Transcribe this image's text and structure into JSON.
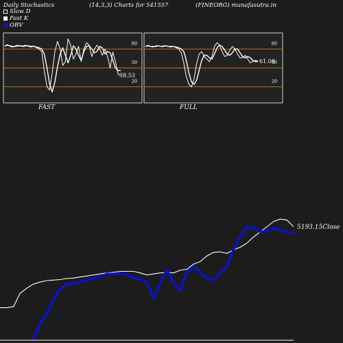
{
  "header": {
    "title": "Daily Stochastics",
    "params": "(14,3,3) Charts for 541557",
    "site": "(FINEORG) munafasutra.in"
  },
  "legend": [
    {
      "label": "Slow  D",
      "color": "#ffffff",
      "style": "outline"
    },
    {
      "label": "Fast K",
      "color": "#ffffff",
      "style": "filled"
    },
    {
      "label": "OBV",
      "color": "#0a12c8",
      "style": "filled"
    }
  ],
  "colors": {
    "background": "#1c1c1c",
    "panel": "#222222",
    "level_line": "#c07a12",
    "stoch_line": "#ffffff",
    "obv_line": "#0a12c8",
    "close_line": "#ffffff"
  },
  "chart_data": [
    {
      "type": "line",
      "title": "FAST",
      "ylim": [
        0,
        100
      ],
      "levels": [
        80,
        50,
        20
      ],
      "tick_labels": [
        "80",
        "50",
        "20"
      ],
      "last_value_label": "38.53",
      "x": [
        1,
        2,
        3,
        4,
        5,
        6,
        7,
        8,
        9,
        10,
        11,
        12,
        13,
        14,
        15,
        16,
        17,
        18,
        19,
        20,
        21,
        22,
        23,
        24,
        25,
        26,
        27,
        28,
        29,
        30,
        31,
        32,
        33,
        34,
        35,
        36,
        37,
        38,
        39,
        40,
        41,
        42,
        43,
        44,
        45
      ],
      "series": [
        {
          "name": "Slow  D",
          "values": [
            85,
            86,
            85,
            84,
            84,
            85,
            85,
            84,
            85,
            85,
            84,
            84,
            83,
            82,
            80,
            72,
            50,
            25,
            12,
            28,
            52,
            72,
            82,
            70,
            58,
            70,
            85,
            80,
            70,
            62,
            76,
            84,
            85,
            80,
            74,
            76,
            84,
            82,
            72,
            76,
            74,
            62,
            50,
            46,
            46
          ]
        },
        {
          "name": "Fast K",
          "values": [
            84,
            87,
            84,
            83,
            85,
            86,
            84,
            85,
            86,
            84,
            83,
            85,
            82,
            80,
            76,
            45,
            20,
            15,
            42,
            76,
            92,
            80,
            54,
            60,
            96,
            86,
            64,
            72,
            84,
            60,
            80,
            90,
            86,
            68,
            80,
            86,
            80,
            70,
            80,
            68,
            50,
            75,
            60,
            40,
            38.53
          ]
        }
      ]
    },
    {
      "type": "line",
      "title": "FULL",
      "ylim": [
        0,
        100
      ],
      "levels": [
        80,
        50,
        20
      ],
      "tick_labels": [
        "80",
        "50",
        "20"
      ],
      "last_value_label": "61.08",
      "x": [
        1,
        2,
        3,
        4,
        5,
        6,
        7,
        8,
        9,
        10,
        11,
        12,
        13,
        14,
        15,
        16,
        17,
        18,
        19,
        20,
        21,
        22,
        23,
        24,
        25,
        26,
        27,
        28,
        29,
        30,
        31,
        32,
        33,
        34,
        35,
        36,
        37,
        38,
        39,
        40,
        41,
        42,
        43,
        44,
        45
      ],
      "series": [
        {
          "name": "Slow  D",
          "values": [
            84,
            85,
            84,
            84,
            84,
            85,
            84,
            84,
            85,
            84,
            84,
            84,
            83,
            82,
            80,
            76,
            62,
            42,
            28,
            24,
            30,
            46,
            62,
            70,
            70,
            66,
            64,
            72,
            82,
            86,
            84,
            78,
            72,
            70,
            74,
            80,
            80,
            74,
            68,
            66,
            68,
            66,
            62,
            60,
            60
          ]
        },
        {
          "name": "Fast K",
          "values": [
            84,
            86,
            84,
            83,
            85,
            85,
            84,
            85,
            85,
            84,
            83,
            84,
            82,
            80,
            74,
            58,
            36,
            24,
            20,
            32,
            56,
            72,
            76,
            68,
            64,
            60,
            68,
            84,
            90,
            86,
            76,
            68,
            70,
            78,
            84,
            80,
            72,
            66,
            66,
            70,
            64,
            58,
            60,
            62,
            61.08
          ]
        }
      ]
    },
    {
      "type": "line",
      "title": "",
      "last_value_label": "5193.15",
      "close_label": "Close",
      "x": [
        1,
        2,
        3,
        4,
        5,
        6,
        7,
        8,
        9,
        10,
        11,
        12,
        13,
        14,
        15,
        16,
        17,
        18,
        19,
        20,
        21,
        22,
        23,
        24,
        25,
        26,
        27,
        28,
        29,
        30,
        31,
        32,
        33,
        34,
        35,
        36,
        37,
        38,
        39,
        40,
        41,
        42,
        43,
        44,
        45
      ],
      "series": [
        {
          "name": "Close",
          "values": [
            3620,
            3620,
            3640,
            3900,
            4000,
            4080,
            4120,
            4150,
            4160,
            4170,
            4190,
            4200,
            4220,
            4240,
            4260,
            4280,
            4300,
            4310,
            4330,
            4330,
            4330,
            4300,
            4260,
            4280,
            4300,
            4310,
            4300,
            4350,
            4370,
            4470,
            4520,
            4630,
            4700,
            4710,
            4680,
            4750,
            4800,
            4880,
            5000,
            5100,
            5200,
            5300,
            5350,
            5330,
            5200
          ]
        },
        {
          "name": "OBV",
          "values": [
            null,
            null,
            null,
            null,
            null,
            3000,
            3300,
            3500,
            3800,
            3980,
            4080,
            4080,
            4120,
            4150,
            4200,
            4220,
            4280,
            4280,
            4290,
            4260,
            4200,
            4180,
            4120,
            3800,
            4100,
            4360,
            4120,
            3950,
            4320,
            4420,
            4300,
            4200,
            4150,
            4300,
            4420,
            4760,
            5000,
            5200,
            5180,
            5100,
            5110,
            5180,
            5130,
            5090,
            5070
          ]
        }
      ]
    }
  ]
}
